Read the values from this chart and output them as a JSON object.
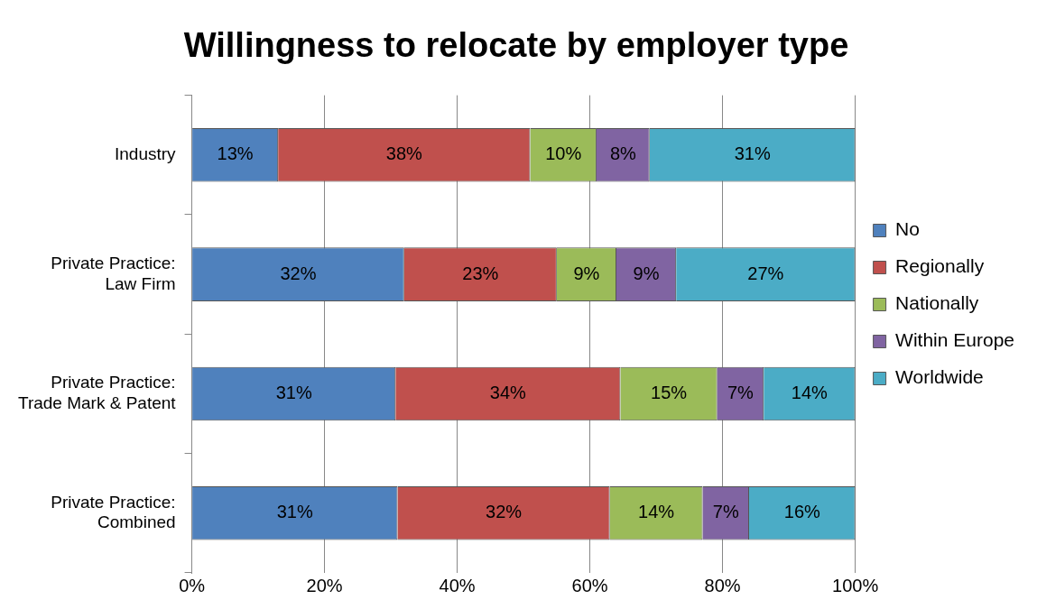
{
  "chart_data": {
    "type": "bar",
    "title": "Willingness to relocate by employer type",
    "orientation": "horizontal",
    "stacked": true,
    "categories": [
      "Industry",
      "Private Practice:\nLaw Firm",
      "Private Practice:\nTrade Mark & Patent",
      "Private Practice:\nCombined"
    ],
    "series": [
      {
        "name": "No",
        "color": "#4f81bd",
        "values": [
          13,
          32,
          30.7,
          31
        ],
        "value_labels": [
          "13%",
          "32%",
          "31%",
          "31%"
        ]
      },
      {
        "name": "Regionally",
        "color": "#c0504d",
        "values": [
          38,
          23,
          33.9,
          32
        ],
        "value_labels": [
          "38%",
          "23%",
          "34%",
          "32%"
        ]
      },
      {
        "name": "Nationally",
        "color": "#9bbb59",
        "values": [
          10,
          9,
          14.6,
          14
        ],
        "value_labels": [
          "10%",
          "9%",
          "15%",
          "14%"
        ]
      },
      {
        "name": "Within Europe",
        "color": "#8064a2",
        "values": [
          8,
          9,
          7,
          7
        ],
        "value_labels": [
          "8%",
          "9%",
          "7%",
          "7%"
        ]
      },
      {
        "name": "Worldwide",
        "color": "#4bacc6",
        "values": [
          31,
          27,
          13.8,
          16
        ],
        "value_labels": [
          "31%",
          "27%",
          "14%",
          "16%"
        ]
      }
    ],
    "xlim": [
      0,
      100
    ],
    "xticks": [
      {
        "value": 0,
        "label": "0%"
      },
      {
        "value": 20,
        "label": "20%"
      },
      {
        "value": 40,
        "label": "40%"
      },
      {
        "value": 60,
        "label": "60%"
      },
      {
        "value": 80,
        "label": "80%"
      },
      {
        "value": 100,
        "label": "100%"
      }
    ],
    "grid": "x",
    "legend": "right"
  }
}
